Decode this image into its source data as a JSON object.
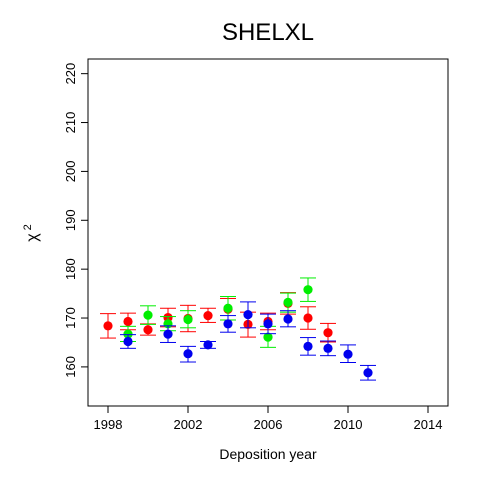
{
  "chart_data": {
    "type": "scatter",
    "title": "SHELXL",
    "xlabel": "Deposition year",
    "ylabel_main": "χ",
    "ylabel_sup": "2",
    "xlim": [
      1997,
      2015
    ],
    "ylim": [
      152,
      223
    ],
    "xticks": [
      1998,
      2002,
      2006,
      2010,
      2014
    ],
    "yticks": [
      160,
      170,
      180,
      190,
      200,
      210,
      220
    ],
    "grid": false,
    "error_bars": true,
    "series": [
      {
        "color": "#ff0000",
        "points": [
          {
            "x": 1998,
            "y": 168.4,
            "lo": 165.9,
            "hi": 170.9
          },
          {
            "x": 1999,
            "y": 169.3,
            "lo": 167.6,
            "hi": 171.0
          },
          {
            "x": 2000,
            "y": 167.6,
            "lo": 166.5,
            "hi": 168.8
          },
          {
            "x": 2001,
            "y": 170.1,
            "lo": 168.2,
            "hi": 172.0
          },
          {
            "x": 2002,
            "y": 169.9,
            "lo": 167.2,
            "hi": 172.6
          },
          {
            "x": 2003,
            "y": 170.5,
            "lo": 169.1,
            "hi": 172.0
          },
          {
            "x": 2004,
            "y": 171.8,
            "lo": 169.6,
            "hi": 174.0
          },
          {
            "x": 2005,
            "y": 168.7,
            "lo": 166.1,
            "hi": 171.2
          },
          {
            "x": 2006,
            "y": 169.3,
            "lo": 167.6,
            "hi": 171.0
          },
          {
            "x": 2007,
            "y": 173.0,
            "lo": 170.8,
            "hi": 175.2
          },
          {
            "x": 2008,
            "y": 170.0,
            "lo": 167.7,
            "hi": 172.3
          },
          {
            "x": 2009,
            "y": 167.0,
            "lo": 165.1,
            "hi": 168.9
          }
        ]
      },
      {
        "color": "#00ee00",
        "points": [
          {
            "x": 1999,
            "y": 166.7,
            "lo": 165.2,
            "hi": 168.3
          },
          {
            "x": 2000,
            "y": 170.6,
            "lo": 168.7,
            "hi": 172.5
          },
          {
            "x": 2001,
            "y": 168.8,
            "lo": 167.4,
            "hi": 170.3
          },
          {
            "x": 2002,
            "y": 169.7,
            "lo": 168.0,
            "hi": 171.5
          },
          {
            "x": 2004,
            "y": 172.0,
            "lo": 169.6,
            "hi": 174.4
          },
          {
            "x": 2006,
            "y": 166.1,
            "lo": 164.0,
            "hi": 168.3
          },
          {
            "x": 2007,
            "y": 173.2,
            "lo": 171.2,
            "hi": 175.1
          },
          {
            "x": 2008,
            "y": 175.8,
            "lo": 173.4,
            "hi": 178.2
          }
        ]
      },
      {
        "color": "#0000ee",
        "points": [
          {
            "x": 1999,
            "y": 165.2,
            "lo": 163.8,
            "hi": 166.6
          },
          {
            "x": 2001,
            "y": 166.7,
            "lo": 165.0,
            "hi": 168.4
          },
          {
            "x": 2002,
            "y": 162.7,
            "lo": 161.0,
            "hi": 164.2
          },
          {
            "x": 2003,
            "y": 164.5,
            "lo": 163.8,
            "hi": 165.2
          },
          {
            "x": 2004,
            "y": 168.8,
            "lo": 167.1,
            "hi": 170.5
          },
          {
            "x": 2005,
            "y": 170.7,
            "lo": 168.0,
            "hi": 173.3
          },
          {
            "x": 2006,
            "y": 168.8,
            "lo": 166.8,
            "hi": 170.8
          },
          {
            "x": 2007,
            "y": 169.8,
            "lo": 168.2,
            "hi": 171.5
          },
          {
            "x": 2008,
            "y": 164.2,
            "lo": 162.4,
            "hi": 166.0
          },
          {
            "x": 2009,
            "y": 163.8,
            "lo": 162.3,
            "hi": 165.3
          },
          {
            "x": 2010,
            "y": 162.6,
            "lo": 160.9,
            "hi": 164.5
          },
          {
            "x": 2011,
            "y": 158.8,
            "lo": 157.3,
            "hi": 160.3
          }
        ]
      }
    ]
  }
}
